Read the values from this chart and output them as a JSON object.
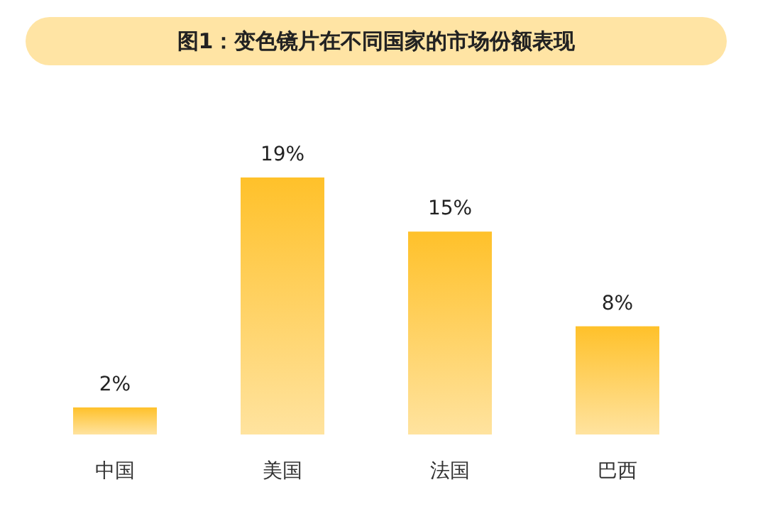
{
  "chart_data": {
    "type": "bar",
    "title": "图1：变色镜片在不同国家的市场份额表现",
    "categories": [
      "中国",
      "美国",
      "法国",
      "巴西"
    ],
    "values": [
      2,
      19,
      15,
      8
    ],
    "color": "#ffc12a",
    "data_labels": true,
    "value_labels": [
      "2%",
      "19%",
      "15%",
      "8%"
    ]
  }
}
